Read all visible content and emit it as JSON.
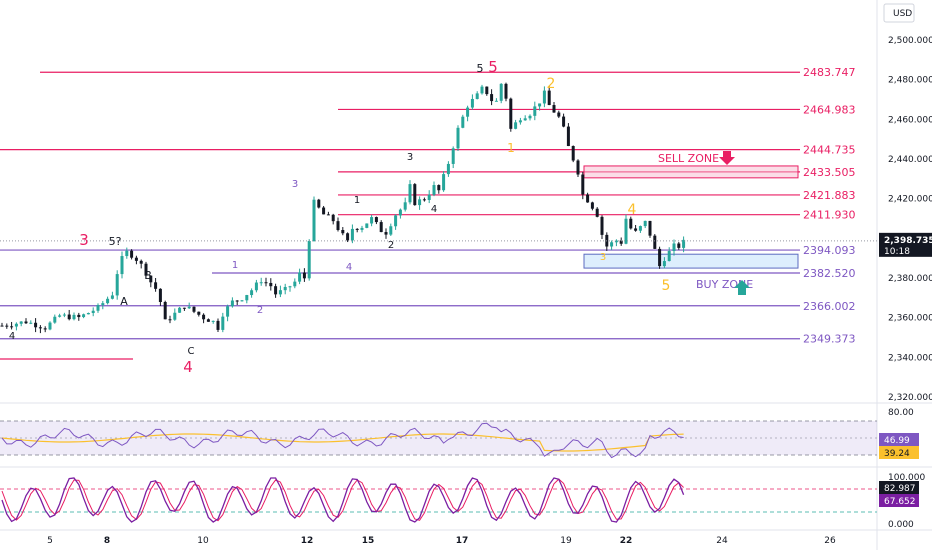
{
  "currency": "USD",
  "colors": {
    "bull": "#26a69a",
    "bear": "#131722",
    "magenta": "#e91e63",
    "purple": "#7e57c2",
    "yellow": "#fbc02d",
    "rsi": "#7e57c2",
    "rsi_ma": "#fbc02d",
    "stoch_k": "#7b1fa2",
    "stoch_d": "#e91e63"
  },
  "price_axis": {
    "min": 2320,
    "max": 2500,
    "ticks": [
      "2,500.000",
      "2,480.000",
      "2,460.000",
      "2,440.000",
      "2,420.000",
      "2,400.000",
      "2,380.000",
      "2,360.000",
      "2,340.000",
      "2,320.000"
    ],
    "tick_values": [
      2500,
      2480,
      2460,
      2440,
      2420,
      2400,
      2380,
      2360,
      2340,
      2320
    ]
  },
  "current_price": {
    "value": "2,398.735",
    "countdown": "10:18"
  },
  "levels": [
    {
      "price": 2483.747,
      "label": "2483.747",
      "color": "magenta"
    },
    {
      "price": 2464.983,
      "label": "2464.983",
      "color": "magenta"
    },
    {
      "price": 2444.735,
      "label": "2444.735",
      "color": "magenta"
    },
    {
      "price": 2433.505,
      "label": "2433.505",
      "color": "magenta"
    },
    {
      "price": 2421.883,
      "label": "2421.883",
      "color": "magenta"
    },
    {
      "price": 2411.93,
      "label": "2411.930",
      "color": "magenta"
    },
    {
      "price": 2394.093,
      "label": "2394.093",
      "color": "purple"
    },
    {
      "price": 2382.52,
      "label": "2382.520",
      "color": "purple"
    },
    {
      "price": 2366.002,
      "label": "2366.002",
      "color": "purple"
    },
    {
      "price": 2349.373,
      "label": "2349.373",
      "color": "purple"
    }
  ],
  "zones": {
    "sell": {
      "label": "SELL ZONE",
      "top": 2436.5,
      "bottom": 2430.5
    },
    "buy": {
      "label": "BUY ZONE",
      "top": 2392,
      "bottom": 2385
    }
  },
  "waves": [
    {
      "text": "3",
      "color": "magenta",
      "size": 15
    },
    {
      "text": "5?",
      "color": "dark",
      "size": 11
    },
    {
      "text": "B",
      "color": "dark",
      "size": 11
    },
    {
      "text": "A",
      "color": "dark",
      "size": 11
    },
    {
      "text": "C",
      "color": "dark",
      "size": 10
    },
    {
      "text": "4",
      "color": "magenta",
      "size": 15
    },
    {
      "text": "4",
      "color": "dark",
      "size": 10
    },
    {
      "text": "1",
      "color": "purple",
      "size": 10
    },
    {
      "text": "2",
      "color": "purple",
      "size": 10
    },
    {
      "text": "3",
      "color": "purple",
      "size": 10
    },
    {
      "text": "4",
      "color": "purple",
      "size": 10
    },
    {
      "text": "1",
      "color": "dark",
      "size": 10
    },
    {
      "text": "2",
      "color": "dark",
      "size": 10
    },
    {
      "text": "3",
      "color": "dark",
      "size": 10
    },
    {
      "text": "4",
      "color": "dark",
      "size": 10
    },
    {
      "text": "5",
      "color": "dark",
      "size": 11
    },
    {
      "text": "5",
      "color": "magenta",
      "size": 15
    },
    {
      "text": "1",
      "color": "yellow",
      "size": 12
    },
    {
      "text": "2",
      "color": "yellow",
      "size": 14
    },
    {
      "text": "3",
      "color": "yellow",
      "size": 10
    },
    {
      "text": "4",
      "color": "yellow",
      "size": 14
    },
    {
      "text": "5",
      "color": "yellow",
      "size": 14
    }
  ],
  "x_axis": {
    "labels": [
      "5",
      "8",
      "10",
      "12",
      "15",
      "17",
      "19",
      "22",
      "24",
      "26"
    ],
    "bold": [
      "8",
      "12",
      "15",
      "17",
      "22"
    ]
  },
  "rsi": {
    "ticks": [
      "80.00"
    ],
    "value": "46.99",
    "ma_value": "39.24"
  },
  "stoch": {
    "ticks": [
      "100.000",
      "0.000"
    ],
    "k_value": "82.987",
    "d_value": "67.652"
  },
  "chart_data": {
    "type": "candlestick",
    "x": [
      "5",
      "8",
      "10",
      "12",
      "15",
      "17",
      "19",
      "22",
      "24",
      "26"
    ],
    "levels": [
      2483.747,
      2464.983,
      2444.735,
      2433.505,
      2421.883,
      2411.93,
      2394.093,
      2382.52,
      2366.002,
      2349.373
    ],
    "close_path": [
      [
        0,
        2356
      ],
      [
        5,
        2358
      ],
      [
        9,
        2355
      ],
      [
        12,
        2361
      ],
      [
        16,
        2360
      ],
      [
        20,
        2365
      ],
      [
        23,
        2372
      ],
      [
        24.5,
        2388
      ],
      [
        26,
        2393
      ],
      [
        27.5,
        2391
      ],
      [
        29.5,
        2385
      ],
      [
        31,
        2378
      ],
      [
        32.5,
        2373
      ],
      [
        34,
        2358
      ],
      [
        36,
        2362
      ],
      [
        38,
        2366
      ],
      [
        40,
        2363
      ],
      [
        42,
        2360
      ],
      [
        44,
        2358
      ],
      [
        45,
        2355
      ],
      [
        46,
        2362
      ],
      [
        48,
        2368
      ],
      [
        50,
        2370
      ],
      [
        52,
        2374
      ],
      [
        54,
        2379
      ],
      [
        56,
        2376
      ],
      [
        57,
        2372
      ],
      [
        59,
        2374
      ],
      [
        61,
        2378
      ],
      [
        62,
        2382
      ],
      [
        63,
        2380
      ],
      [
        64,
        2400
      ],
      [
        65,
        2418
      ],
      [
        67,
        2412
      ],
      [
        69,
        2409
      ],
      [
        70.5,
        2403
      ],
      [
        72,
        2398
      ],
      [
        73,
        2405
      ],
      [
        75,
        2406
      ],
      [
        77,
        2410
      ],
      [
        79,
        2404
      ],
      [
        80,
        2403
      ],
      [
        82,
        2412
      ],
      [
        84,
        2417
      ],
      [
        85,
        2426
      ],
      [
        86,
        2418
      ],
      [
        88,
        2420
      ],
      [
        90,
        2426
      ],
      [
        91,
        2424
      ],
      [
        93,
        2438
      ],
      [
        95,
        2455
      ],
      [
        97,
        2467
      ],
      [
        99,
        2472
      ],
      [
        100.5,
        2477
      ],
      [
        101.5,
        2470
      ],
      [
        103,
        2469
      ],
      [
        104,
        2478
      ],
      [
        105,
        2471
      ],
      [
        106,
        2455
      ],
      [
        108,
        2461
      ],
      [
        110,
        2463
      ],
      [
        112,
        2469
      ],
      [
        113,
        2473
      ],
      [
        114,
        2467
      ],
      [
        116,
        2461
      ],
      [
        117,
        2455
      ],
      [
        118,
        2446
      ],
      [
        119.5,
        2437
      ],
      [
        120.5,
        2430
      ],
      [
        121,
        2422
      ],
      [
        122.5,
        2418
      ],
      [
        124,
        2412
      ],
      [
        125,
        2402
      ],
      [
        126,
        2396
      ],
      [
        128,
        2399
      ],
      [
        129,
        2398
      ],
      [
        130,
        2410
      ],
      [
        131,
        2405
      ],
      [
        132,
        2403
      ],
      [
        134,
        2408
      ],
      [
        135,
        2402
      ],
      [
        136,
        2394
      ],
      [
        137,
        2386
      ],
      [
        138,
        2390
      ],
      [
        139,
        2393
      ],
      [
        140,
        2396
      ],
      [
        141.5,
        2396
      ],
      [
        142.5,
        2400
      ]
    ]
  }
}
